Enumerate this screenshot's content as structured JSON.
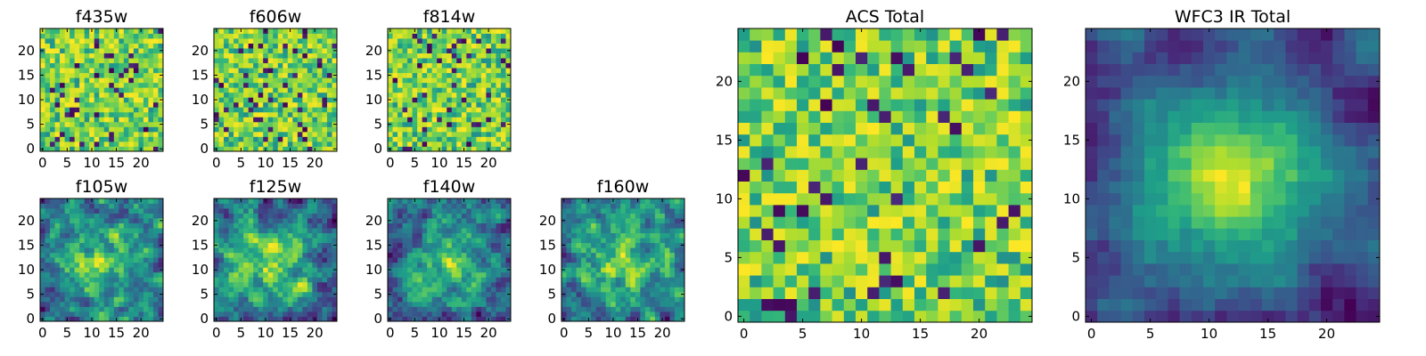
{
  "chart_data": [
    {
      "type": "heatmap",
      "title": "f435w",
      "xlim": [
        0,
        24
      ],
      "ylim": [
        0,
        24
      ],
      "x_ticks": [
        0,
        5,
        10,
        15,
        20
      ],
      "y_ticks": [
        0,
        5,
        10,
        15,
        20
      ],
      "colormap": "viridis",
      "pattern": "noise",
      "seed": 11
    },
    {
      "type": "heatmap",
      "title": "f606w",
      "xlim": [
        0,
        24
      ],
      "ylim": [
        0,
        24
      ],
      "x_ticks": [
        0,
        5,
        10,
        15,
        20
      ],
      "y_ticks": [
        0,
        5,
        10,
        15,
        20
      ],
      "colormap": "viridis",
      "pattern": "noise",
      "seed": 23
    },
    {
      "type": "heatmap",
      "title": "f814w",
      "xlim": [
        0,
        24
      ],
      "ylim": [
        0,
        24
      ],
      "x_ticks": [
        0,
        5,
        10,
        15,
        20
      ],
      "y_ticks": [
        0,
        5,
        10,
        15,
        20
      ],
      "colormap": "viridis",
      "pattern": "noise",
      "seed": 37
    },
    {
      "type": "heatmap",
      "title": "f105w",
      "xlim": [
        0,
        24
      ],
      "ylim": [
        0,
        24
      ],
      "x_ticks": [
        0,
        5,
        10,
        15,
        20
      ],
      "y_ticks": [
        0,
        5,
        10,
        15,
        20
      ],
      "colormap": "viridis",
      "pattern": "blob",
      "seed": 41
    },
    {
      "type": "heatmap",
      "title": "f125w",
      "xlim": [
        0,
        24
      ],
      "ylim": [
        0,
        24
      ],
      "x_ticks": [
        0,
        5,
        10,
        15,
        20
      ],
      "y_ticks": [
        0,
        5,
        10,
        15,
        20
      ],
      "colormap": "viridis",
      "pattern": "blob",
      "seed": 53
    },
    {
      "type": "heatmap",
      "title": "f140w",
      "xlim": [
        0,
        24
      ],
      "ylim": [
        0,
        24
      ],
      "x_ticks": [
        0,
        5,
        10,
        15,
        20
      ],
      "y_ticks": [
        0,
        5,
        10,
        15,
        20
      ],
      "colormap": "viridis",
      "pattern": "blob",
      "seed": 67
    },
    {
      "type": "heatmap",
      "title": "f160w",
      "xlim": [
        0,
        24
      ],
      "ylim": [
        0,
        24
      ],
      "x_ticks": [
        0,
        5,
        10,
        15,
        20
      ],
      "y_ticks": [
        0,
        5,
        10,
        15,
        20
      ],
      "colormap": "viridis",
      "pattern": "blob",
      "seed": 79
    },
    {
      "type": "heatmap",
      "title": "ACS Total",
      "xlim": [
        0,
        24
      ],
      "ylim": [
        0,
        24
      ],
      "x_ticks": [
        0,
        5,
        10,
        15,
        20
      ],
      "y_ticks": [
        0,
        5,
        10,
        15,
        20
      ],
      "colormap": "viridis",
      "pattern": "noise",
      "seed": 97
    },
    {
      "type": "heatmap",
      "title": "WFC3 IR Total",
      "xlim": [
        0,
        24
      ],
      "ylim": [
        0,
        24
      ],
      "x_ticks": [
        0,
        5,
        10,
        15,
        20
      ],
      "y_ticks": [
        0,
        5,
        10,
        15,
        20
      ],
      "colormap": "viridis",
      "pattern": "blob-strong",
      "seed": 113
    }
  ]
}
